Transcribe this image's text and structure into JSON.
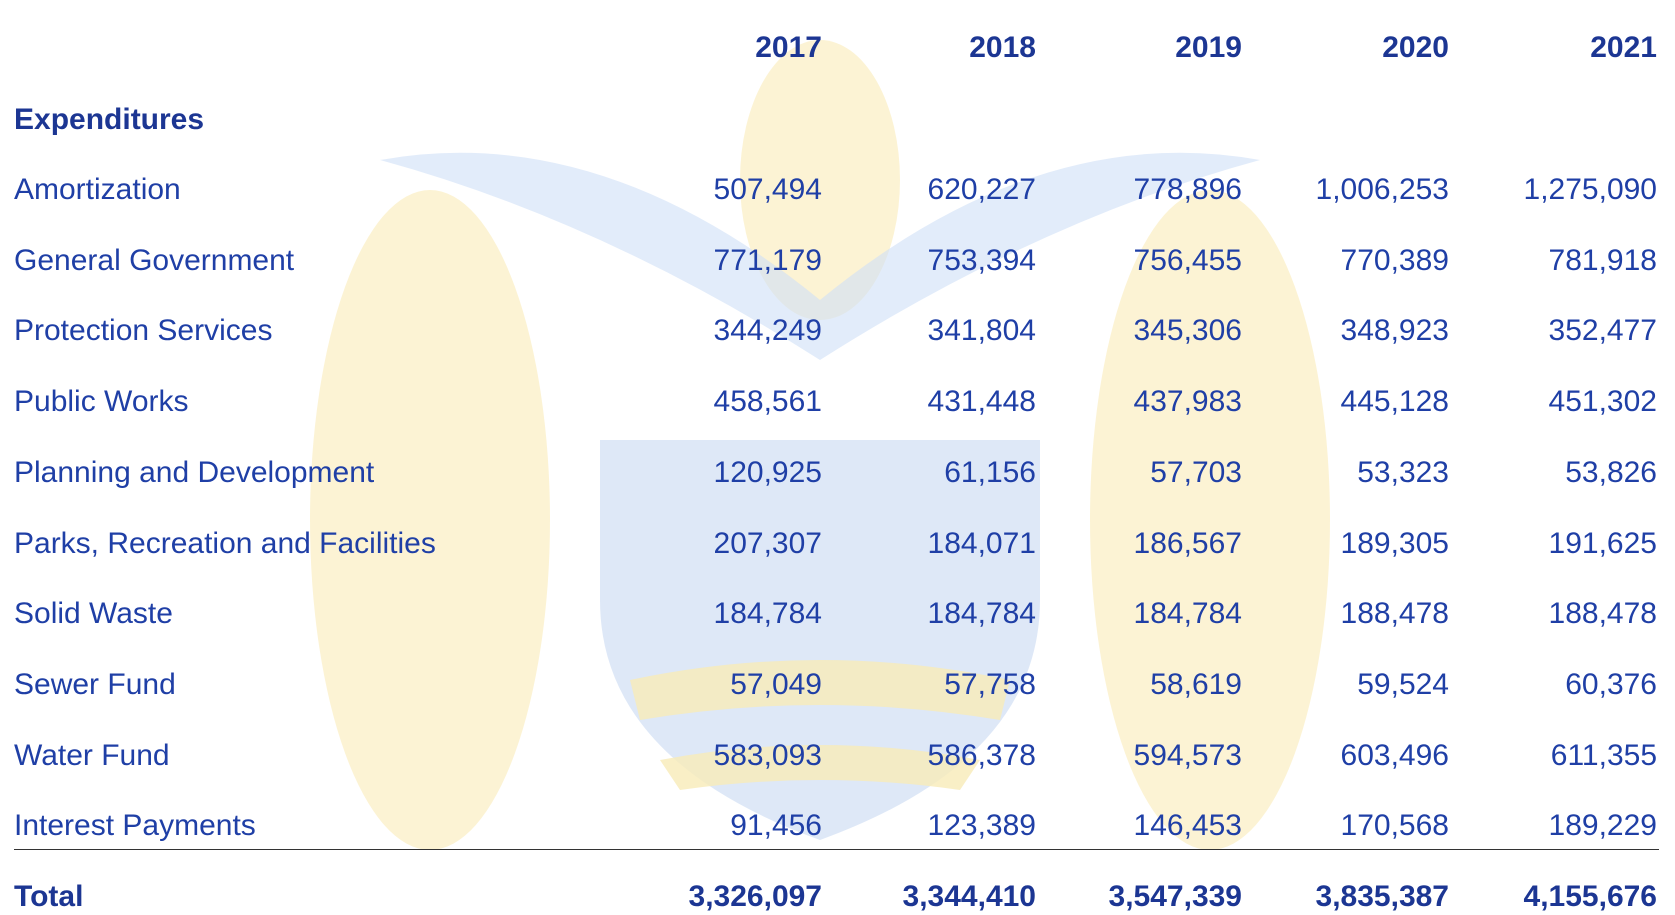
{
  "table": {
    "columns": [
      "2017",
      "2018",
      "2019",
      "2020",
      "2021"
    ],
    "section": "Expenditures",
    "rows": [
      {
        "label": "Amortization",
        "values": [
          "507,494",
          "620,227",
          "778,896",
          "1,006,253",
          "1,275,090"
        ]
      },
      {
        "label": "General Government",
        "values": [
          "771,179",
          "753,394",
          "756,455",
          "770,389",
          "781,918"
        ]
      },
      {
        "label": "Protection Services",
        "values": [
          "344,249",
          "341,804",
          "345,306",
          "348,923",
          "352,477"
        ]
      },
      {
        "label": "Public Works",
        "values": [
          "458,561",
          "431,448",
          "437,983",
          "445,128",
          "451,302"
        ]
      },
      {
        "label": "Planning and Development",
        "values": [
          "120,925",
          "61,156",
          "57,703",
          "53,323",
          "53,826"
        ]
      },
      {
        "label": "Parks, Recreation and Facilities",
        "values": [
          "207,307",
          "184,071",
          "186,567",
          "189,305",
          "191,625"
        ]
      },
      {
        "label": "Solid Waste",
        "values": [
          "184,784",
          "184,784",
          "184,784",
          "188,478",
          "188,478"
        ]
      },
      {
        "label": "Sewer Fund",
        "values": [
          "57,049",
          "57,758",
          "58,619",
          "59,524",
          "60,376"
        ]
      },
      {
        "label": "Water Fund",
        "values": [
          "583,093",
          "586,378",
          "594,573",
          "603,496",
          "611,355"
        ]
      },
      {
        "label": "Interest Payments",
        "values": [
          "91,456",
          "123,389",
          "146,453",
          "170,568",
          "189,229"
        ]
      }
    ],
    "total": {
      "label": "Total",
      "values": [
        "3,326,097",
        "3,344,410",
        "3,547,339",
        "3,835,387",
        "4,155,676"
      ]
    }
  }
}
